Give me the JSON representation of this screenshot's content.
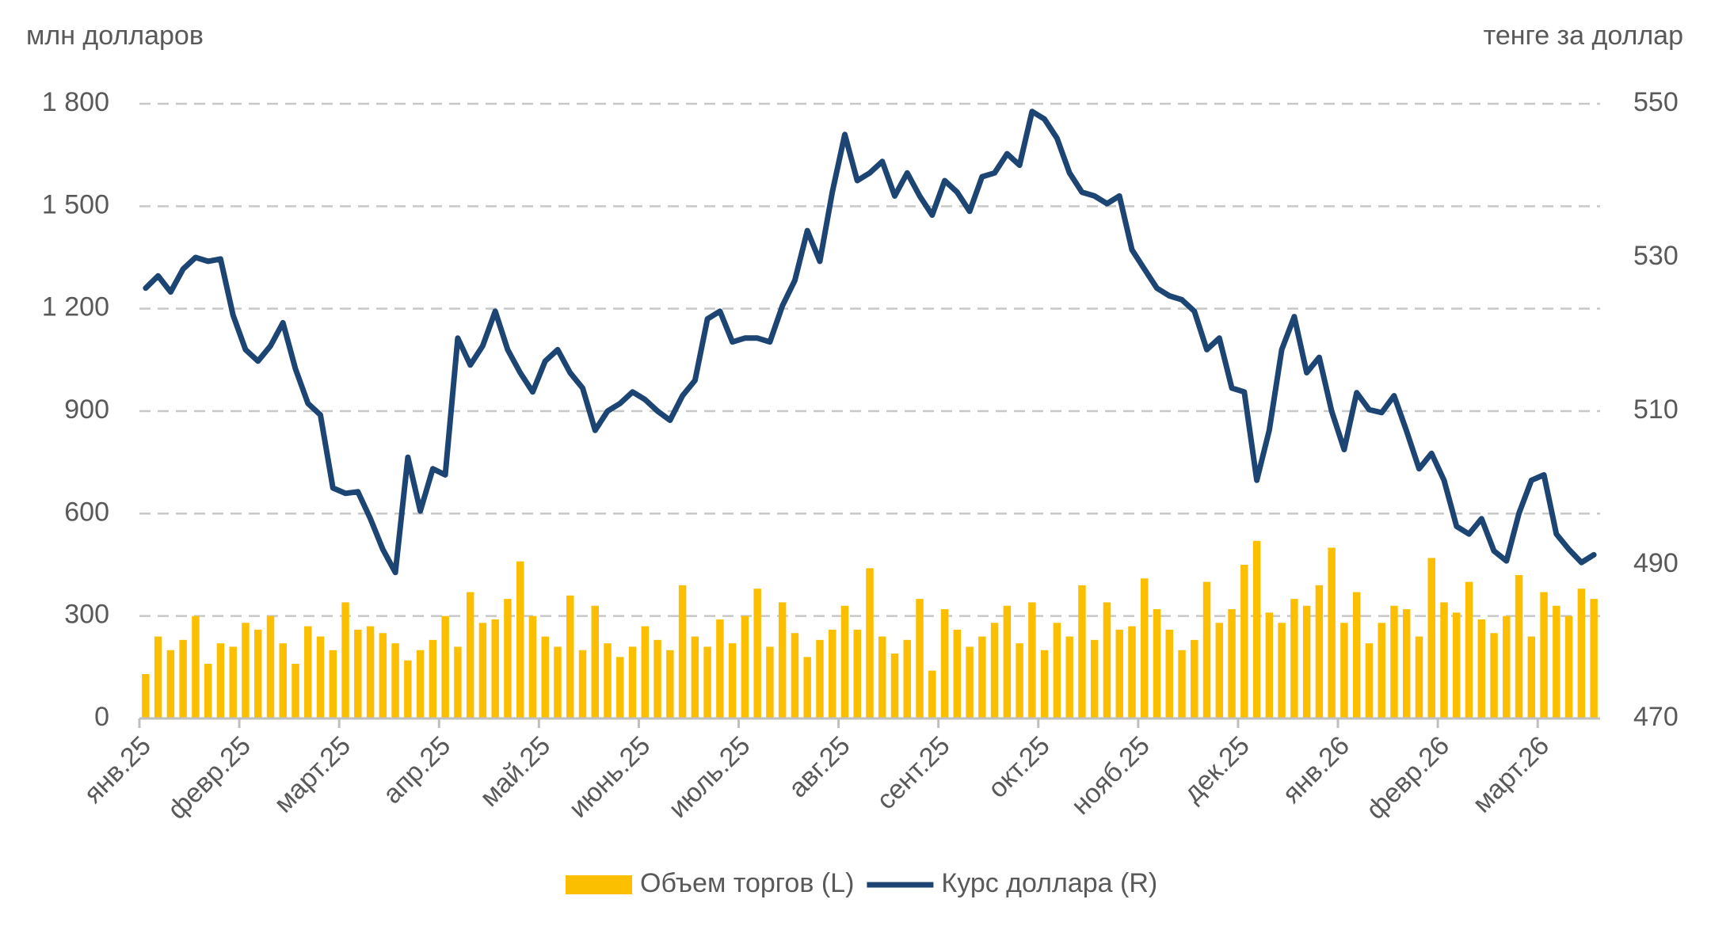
{
  "chart_data": {
    "type": "combo",
    "y_axis_label": "млн долларов",
    "y2_axis_label": "тенге за доллар",
    "categories": [
      "янв.25",
      null,
      null,
      null,
      null,
      null,
      null,
      null,
      "февр.25",
      null,
      null,
      null,
      null,
      null,
      null,
      null,
      "март.25",
      null,
      null,
      null,
      null,
      null,
      null,
      null,
      "апр.25",
      null,
      null,
      null,
      null,
      null,
      null,
      null,
      "май.25",
      null,
      null,
      null,
      null,
      null,
      null,
      null,
      "июнь.25",
      null,
      null,
      null,
      null,
      null,
      null,
      null,
      "июль.25",
      null,
      null,
      null,
      null,
      null,
      null,
      null,
      "авг.25",
      null,
      null,
      null,
      null,
      null,
      null,
      null,
      "сент.25",
      null,
      null,
      null,
      null,
      null,
      null,
      null,
      "окт.25",
      null,
      null,
      null,
      null,
      null,
      null,
      null,
      "нояб.25",
      null,
      null,
      null,
      null,
      null,
      null,
      null,
      "дек.25",
      null,
      null,
      null,
      null,
      null,
      null,
      null,
      "янв.26",
      null,
      null,
      null,
      null,
      null,
      null,
      null,
      "февр.26",
      null,
      null,
      null,
      null,
      null,
      null,
      null,
      "март.26",
      null,
      null,
      null,
      null
    ],
    "ylim": [
      0,
      1800
    ],
    "yticks": [
      0,
      300,
      600,
      900,
      {
        "value": 1200,
        "label": "1 200"
      },
      {
        "value": 1500,
        "label": "1 500"
      },
      {
        "value": 1800,
        "label": "1 800"
      }
    ],
    "y2lim": [
      470,
      550
    ],
    "y2ticks": [
      470,
      490,
      510,
      530,
      550
    ],
    "grid": true,
    "legend": "bottom",
    "series": [
      {
        "name": "Объем торгов (L)",
        "type": "bar",
        "color": "#fbbf00",
        "values": [
          130,
          240,
          200,
          230,
          300,
          160,
          220,
          210,
          280,
          260,
          300,
          220,
          160,
          270,
          240,
          200,
          340,
          260,
          270,
          250,
          220,
          170,
          200,
          230,
          300,
          210,
          370,
          280,
          290,
          350,
          460,
          300,
          240,
          210,
          360,
          200,
          330,
          220,
          180,
          210,
          270,
          230,
          200,
          390,
          240,
          210,
          290,
          220,
          300,
          380,
          210,
          340,
          250,
          180,
          230,
          260,
          330,
          260,
          440,
          240,
          190,
          230,
          350,
          140,
          320,
          260,
          210,
          240,
          280,
          330,
          220,
          340,
          200,
          280,
          240,
          390,
          230,
          340,
          260,
          270,
          410,
          320,
          260,
          200,
          230,
          400,
          280,
          320,
          450,
          520,
          310,
          280,
          350,
          330,
          390,
          500,
          280,
          370,
          220,
          280,
          330,
          320,
          240,
          470,
          340,
          310,
          400,
          290,
          250,
          300,
          420,
          240,
          370,
          330,
          300,
          380,
          350
        ]
      },
      {
        "name": "Курс доллара (R)",
        "type": "line",
        "axis": "y2",
        "color": "#1d4573",
        "values": [
          526,
          527.6,
          525.5,
          528.5,
          530,
          529.5,
          529.8,
          522.5,
          518,
          516.5,
          518.5,
          521.5,
          515.5,
          511,
          509.5,
          500,
          499.3,
          499.5,
          496,
          492,
          489,
          504,
          497,
          502.5,
          501.7,
          519.5,
          516,
          518.5,
          523,
          518,
          515,
          512.5,
          516.5,
          518,
          515,
          513,
          507.5,
          510,
          511,
          512.5,
          511.5,
          510,
          508.8,
          512,
          514,
          522,
          523,
          519,
          519.5,
          519.5,
          519,
          523.7,
          527,
          533.5,
          529.5,
          538.5,
          546,
          540,
          541,
          542.5,
          538,
          541,
          538,
          535.5,
          540,
          538.5,
          536,
          540.5,
          541,
          543.5,
          542,
          549,
          548,
          545.5,
          541,
          538.5,
          538,
          537,
          538,
          531,
          528.5,
          526,
          525,
          524.5,
          523,
          518,
          519.5,
          513,
          512.5,
          501,
          507.5,
          518,
          522.3,
          515,
          517,
          510,
          505,
          512.4,
          510.2,
          509.8,
          512,
          507.4,
          502.5,
          504.5,
          501,
          495,
          494,
          496,
          491.8,
          490.5,
          496.7,
          501,
          501.7,
          494,
          492,
          490.3,
          491.3
        ]
      }
    ]
  }
}
